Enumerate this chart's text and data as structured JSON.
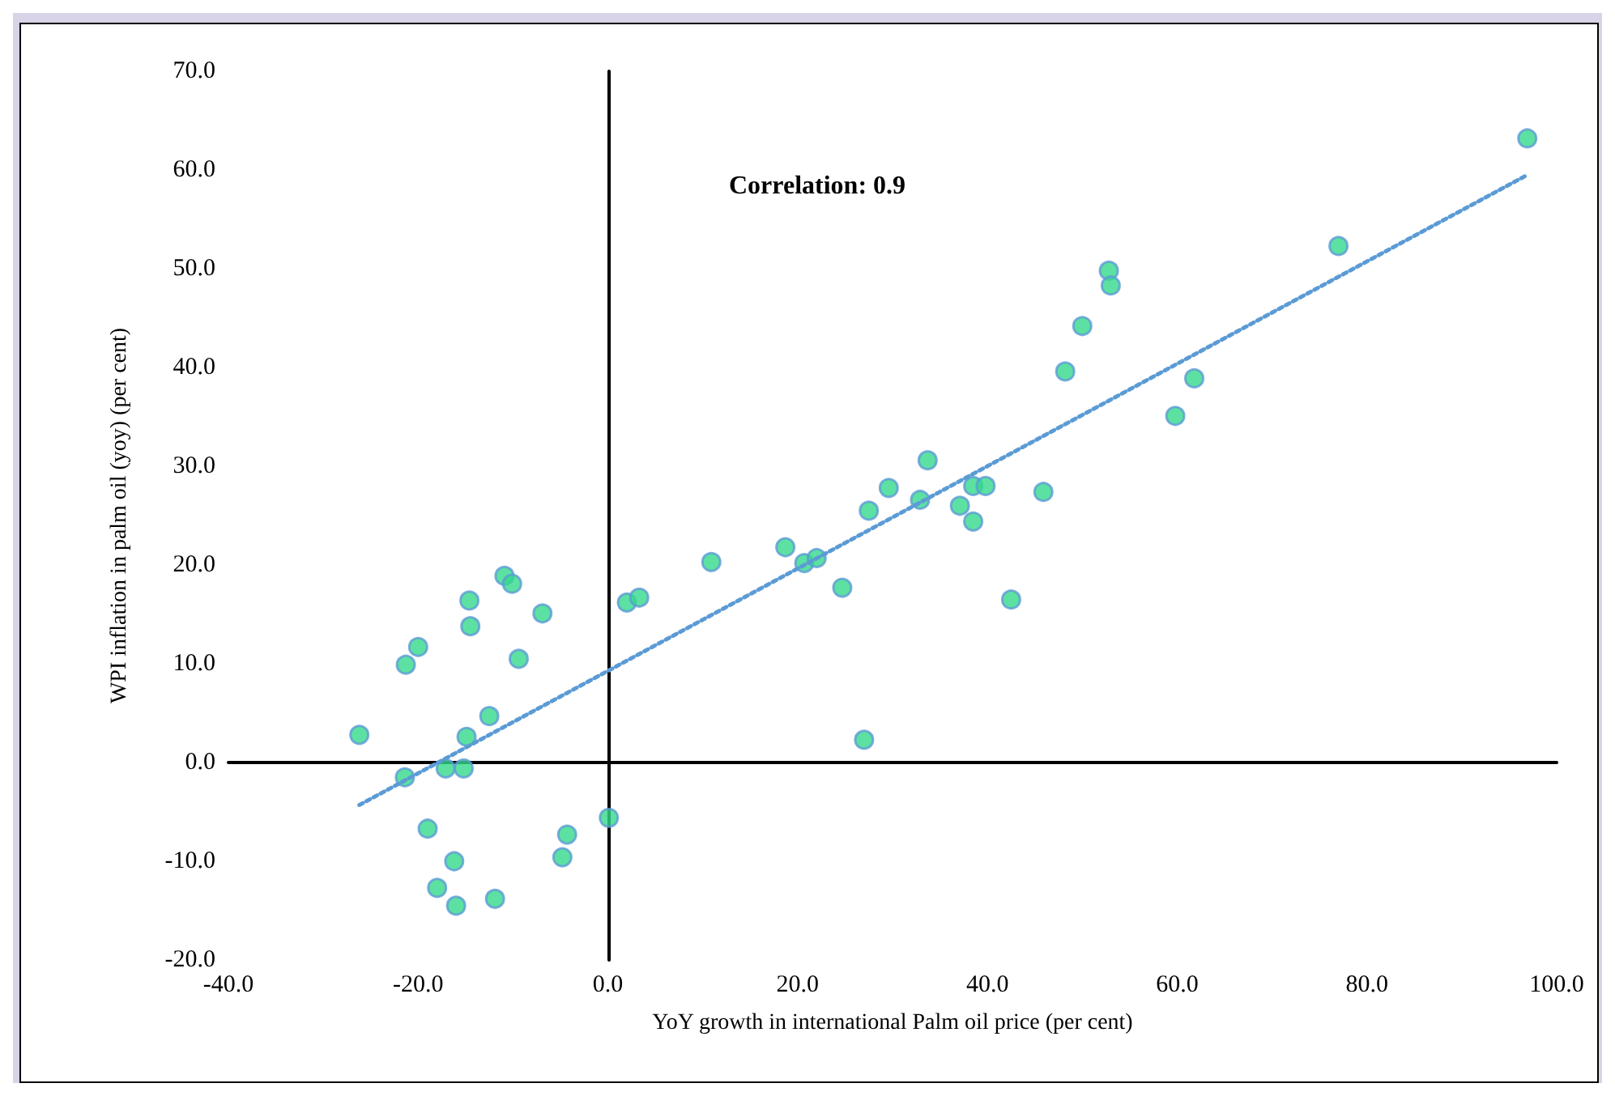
{
  "chart_data": {
    "type": "scatter",
    "xlabel": "YoY growth in international Palm oil price (per cent)",
    "ylabel": "WPI inflation in palm oil (yoy) (per cent)",
    "annotations": [
      "Correlation: 0.9"
    ],
    "x": [
      -26.2,
      -21.3,
      -20.0,
      -14.6,
      -14.5,
      -10.9,
      -10.1,
      -6.9,
      -9.4,
      -12.5,
      -14.9,
      -21.4,
      -17.1,
      -15.2,
      -19.0,
      -16.2,
      -18.0,
      -16.0,
      -11.9,
      -4.3,
      -4.8,
      0.1,
      2.0,
      3.3,
      10.9,
      18.7,
      20.7,
      22.0,
      24.7,
      27.5,
      29.6,
      33.7,
      32.9,
      37.1,
      38.5,
      39.8,
      38.5,
      45.9,
      42.5,
      27.0,
      48.2,
      50.0,
      52.8,
      53.0,
      61.8,
      59.8,
      77.0,
      96.9
    ],
    "series": [
      {
        "color": "#33d98b",
        "marker": "circle",
        "values": [
          2.8,
          9.9,
          11.7,
          16.4,
          13.8,
          18.9,
          18.1,
          15.1,
          10.5,
          4.7,
          2.6,
          -1.5,
          -0.6,
          -0.6,
          -6.7,
          -10.0,
          -12.7,
          -14.5,
          -13.8,
          -7.3,
          -9.6,
          -5.6,
          16.2,
          16.7,
          20.3,
          21.8,
          20.2,
          20.7,
          17.7,
          25.5,
          27.8,
          30.6,
          26.6,
          26.0,
          28.0,
          28.0,
          24.4,
          27.4,
          16.5,
          2.3,
          39.6,
          44.2,
          49.8,
          48.3,
          38.9,
          35.1,
          52.3,
          63.2
        ]
      },
      {
        "type": "line",
        "color": "#5b9bd5",
        "line_style": "dotted",
        "marker": "none",
        "x": [
          -26.2,
          96.9
        ],
        "values": [
          -4.3,
          59.5
        ]
      }
    ],
    "xlim": [
      -40,
      100
    ],
    "ylim": [
      -20,
      70
    ],
    "xticks": [
      {
        "value": -40,
        "label": "-40.0"
      },
      {
        "value": -20,
        "label": "-20.0"
      },
      {
        "value": 0,
        "label": "0.0"
      },
      {
        "value": 20,
        "label": "20.0"
      },
      {
        "value": 40,
        "label": "40.0"
      },
      {
        "value": 60,
        "label": "60.0"
      },
      {
        "value": 80,
        "label": "80.0"
      },
      {
        "value": 100,
        "label": "100.0"
      }
    ],
    "yticks": [
      {
        "value": -20,
        "label": "-20.0"
      },
      {
        "value": -10,
        "label": "-10.0"
      },
      {
        "value": 0,
        "label": "0.0"
      },
      {
        "value": 10,
        "label": "10.0"
      },
      {
        "value": 20,
        "label": "20.0"
      },
      {
        "value": 30,
        "label": "30.0"
      },
      {
        "value": 40,
        "label": "40.0"
      },
      {
        "value": 50,
        "label": "50.0"
      },
      {
        "value": 60,
        "label": "60.0"
      },
      {
        "value": 70,
        "label": "70.0"
      }
    ]
  }
}
